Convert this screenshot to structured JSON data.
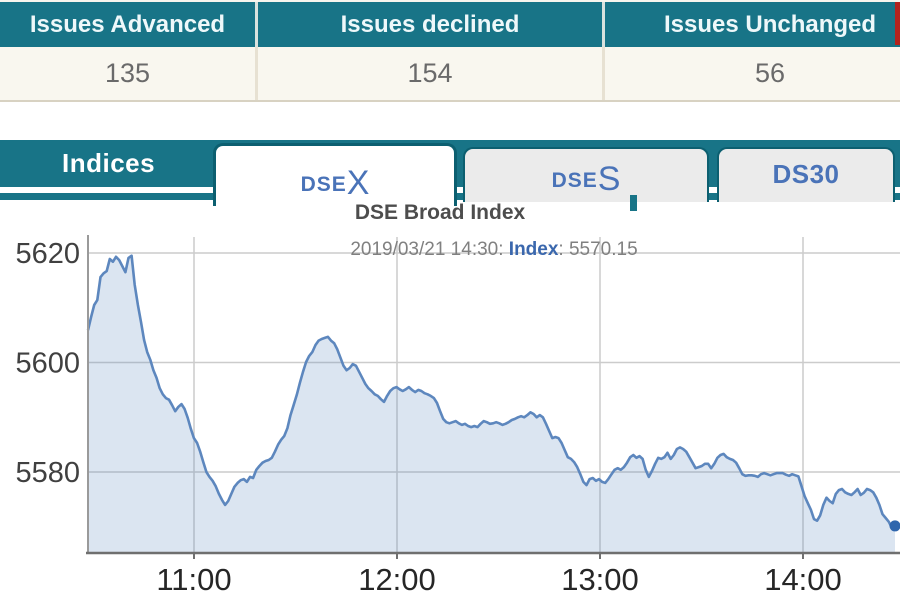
{
  "colors": {
    "teal": "#187487",
    "teal_dark": "#0c5f70",
    "tab_text_blue": "#4a73b8",
    "red_marker": "#b3231d",
    "line": "#5d87be",
    "fill": "#5d87be",
    "dot": "#2f66ad",
    "grid": "#cccccc",
    "axis": "#6f6f6f"
  },
  "summary_table": {
    "columns": [
      {
        "header": "Issues Advanced",
        "value": "135"
      },
      {
        "header": "Issues declined",
        "value": "154"
      },
      {
        "header": "Issues Unchanged",
        "value": "56"
      }
    ]
  },
  "tabbar": {
    "section_label": "Indices",
    "tabs": [
      {
        "id": "dsex",
        "prefix": "DSE",
        "suffix": "X",
        "active": true
      },
      {
        "id": "dses",
        "prefix": "DSE",
        "suffix": "S",
        "active": false
      },
      {
        "id": "ds30",
        "prefix": "DS30",
        "suffix": "",
        "active": false
      }
    ]
  },
  "chart_data": {
    "type": "area",
    "title": "DSE Broad Index",
    "subtitle": "2019/03/21 14:30: Index: 5570.15",
    "subtitle_parts": {
      "datetime": "2019/03/21 14:30: ",
      "label": "Index",
      "value": ": 5570.15"
    },
    "xlabel": "",
    "ylabel": "",
    "x_ticks": [
      "11:00",
      "12:00",
      "13:00",
      "14:00"
    ],
    "y_ticks": [
      5620,
      5600,
      5580
    ],
    "ylim": [
      5565,
      5622
    ],
    "time_start": "10:28",
    "time_end": "14:30",
    "grid": true,
    "legend": false,
    "series": [
      {
        "name": "Index",
        "values": [
          5605.9,
          5608.3,
          5610.5,
          5611.4,
          5615.6,
          5616.3,
          5616.7,
          5618.9,
          5618.4,
          5619.3,
          5618.7,
          5617.6,
          5616.5,
          5619.1,
          5619.5,
          5614.2,
          5610.5,
          5607.4,
          5604.1,
          5601.9,
          5600.5,
          5598.6,
          5597.2,
          5595.3,
          5594.2,
          5593.5,
          5593.2,
          5592.2,
          5591.1,
          5591.9,
          5592.4,
          5591.5,
          5589.9,
          5587.9,
          5586.2,
          5585.3,
          5583.7,
          5581.8,
          5580.0,
          5579.1,
          5578.4,
          5577.4,
          5576.0,
          5574.9,
          5574.0,
          5574.7,
          5576.0,
          5577.3,
          5578.0,
          5578.5,
          5578.7,
          5578.2,
          5579.1,
          5578.9,
          5580.4,
          5581.1,
          5581.7,
          5582.0,
          5582.2,
          5582.6,
          5583.7,
          5585.0,
          5585.9,
          5586.6,
          5588.0,
          5590.4,
          5592.2,
          5594.1,
          5596.3,
          5598.3,
          5600.1,
          5601.2,
          5601.9,
          5603.2,
          5604.0,
          5604.3,
          5604.5,
          5604.7,
          5604.0,
          5603.5,
          5602.4,
          5600.9,
          5599.4,
          5598.6,
          5599.0,
          5599.7,
          5599.4,
          5598.3,
          5597.2,
          5596.1,
          5595.3,
          5594.8,
          5594.2,
          5593.9,
          5593.3,
          5592.8,
          5593.9,
          5594.8,
          5595.3,
          5595.5,
          5595.1,
          5594.8,
          5595.1,
          5595.5,
          5595.0,
          5594.6,
          5595.0,
          5594.8,
          5594.4,
          5594.2,
          5593.9,
          5593.5,
          5592.6,
          5591.1,
          5589.7,
          5589.1,
          5588.9,
          5589.1,
          5589.3,
          5588.9,
          5588.6,
          5588.8,
          5588.4,
          5588.2,
          5588.4,
          5588.2,
          5588.8,
          5589.3,
          5589.1,
          5588.8,
          5588.9,
          5589.1,
          5588.9,
          5588.6,
          5588.8,
          5589.1,
          5589.5,
          5589.7,
          5590.0,
          5590.2,
          5590.0,
          5590.4,
          5590.9,
          5590.6,
          5590.0,
          5590.4,
          5590.0,
          5588.8,
          5587.5,
          5586.2,
          5586.4,
          5586.2,
          5585.3,
          5584.0,
          5582.7,
          5582.4,
          5581.8,
          5580.9,
          5579.6,
          5578.2,
          5577.6,
          5578.7,
          5578.9,
          5578.4,
          5578.7,
          5578.2,
          5578.0,
          5578.7,
          5579.6,
          5580.4,
          5580.7,
          5580.4,
          5580.9,
          5581.7,
          5582.7,
          5583.1,
          5582.6,
          5582.9,
          5582.4,
          5580.4,
          5579.1,
          5580.2,
          5581.5,
          5582.6,
          5582.4,
          5582.7,
          5583.5,
          5582.4,
          5583.1,
          5584.2,
          5584.5,
          5584.2,
          5583.7,
          5582.7,
          5581.7,
          5580.7,
          5580.9,
          5581.1,
          5581.5,
          5581.5,
          5580.7,
          5581.5,
          5582.6,
          5583.1,
          5583.3,
          5582.7,
          5582.4,
          5582.2,
          5581.7,
          5580.7,
          5579.6,
          5579.3,
          5579.4,
          5579.4,
          5579.3,
          5579.1,
          5579.6,
          5579.8,
          5579.6,
          5579.4,
          5579.6,
          5579.8,
          5579.8,
          5579.8,
          5579.5,
          5579.3,
          5579.6,
          5579.4,
          5579.2,
          5577.4,
          5575.6,
          5574.3,
          5573.1,
          5571.4,
          5571.1,
          5572.1,
          5574.0,
          5575.3,
          5574.7,
          5574.3,
          5576.0,
          5576.7,
          5576.9,
          5576.3,
          5576.0,
          5575.8,
          5576.3,
          5576.9,
          5575.8,
          5576.2,
          5576.9,
          5576.7,
          5576.3,
          5575.3,
          5574.0,
          5572.3,
          5571.6,
          5570.9,
          5569.8,
          5570.15
        ]
      }
    ]
  }
}
